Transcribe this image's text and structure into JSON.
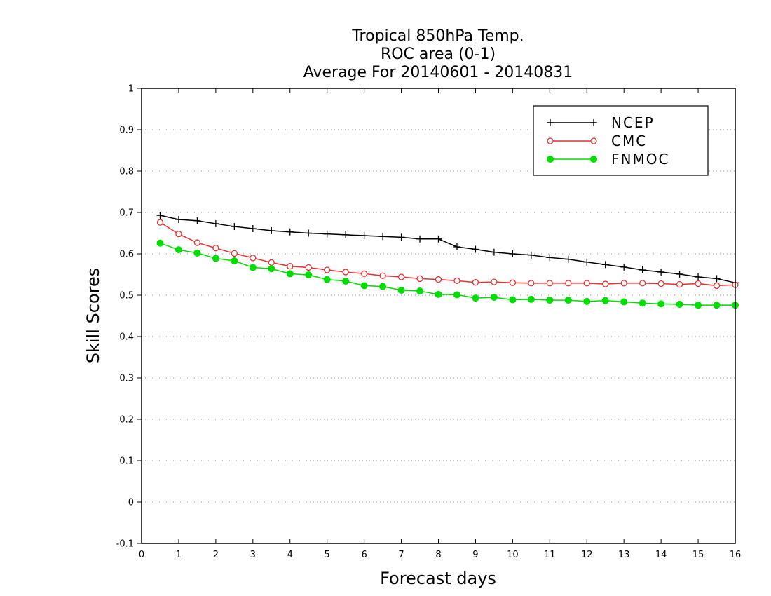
{
  "chart_data": {
    "type": "line",
    "title": [
      "Tropical 850hPa Temp.",
      "ROC area (0-1)",
      "Average For 20140601 - 20140831"
    ],
    "xlabel": "Forecast days",
    "ylabel": "Skill Scores",
    "xlim": [
      0,
      16
    ],
    "ylim": [
      -0.1,
      1
    ],
    "xticks": [
      0,
      1,
      2,
      3,
      4,
      5,
      6,
      7,
      8,
      9,
      10,
      11,
      12,
      13,
      14,
      15,
      16
    ],
    "yticks": [
      -0.1,
      0,
      0.1,
      0.2,
      0.3,
      0.4,
      0.5,
      0.6,
      0.7,
      0.8,
      0.9,
      1
    ],
    "ytick_labels": [
      "-0.1",
      "0",
      "0.1",
      "0.2",
      "0.3",
      "0.4",
      "0.5",
      "0.6",
      "0.7",
      "0.8",
      "0.9",
      "1"
    ],
    "grid": "horizontal dotted",
    "legend_position": "top-right",
    "x": [
      0.5,
      1.0,
      1.5,
      2.0,
      2.5,
      3.0,
      3.5,
      4.0,
      4.5,
      5.0,
      5.5,
      6.0,
      6.5,
      7.0,
      7.5,
      8.0,
      8.5,
      9.0,
      9.5,
      10.0,
      10.5,
      11.0,
      11.5,
      12.0,
      12.5,
      13.0,
      13.5,
      14.0,
      14.5,
      15.0,
      15.5,
      16.0
    ],
    "series": [
      {
        "name": "NCEP",
        "color": "#000000",
        "marker": "plus",
        "values": [
          0.693,
          0.683,
          0.68,
          0.673,
          0.666,
          0.661,
          0.656,
          0.653,
          0.65,
          0.648,
          0.646,
          0.644,
          0.642,
          0.64,
          0.636,
          0.636,
          0.617,
          0.611,
          0.604,
          0.6,
          0.597,
          0.591,
          0.587,
          0.58,
          0.574,
          0.568,
          0.561,
          0.556,
          0.551,
          0.544,
          0.54,
          0.53
        ]
      },
      {
        "name": "CMC",
        "color": "#e83030",
        "marker": "open-circle",
        "values": [
          0.676,
          0.648,
          0.627,
          0.614,
          0.601,
          0.59,
          0.579,
          0.57,
          0.567,
          0.561,
          0.556,
          0.552,
          0.547,
          0.544,
          0.54,
          0.538,
          0.535,
          0.531,
          0.532,
          0.53,
          0.529,
          0.529,
          0.529,
          0.529,
          0.527,
          0.529,
          0.529,
          0.528,
          0.526,
          0.528,
          0.523,
          0.525
        ]
      },
      {
        "name": "FNMOC",
        "color": "#00dd00",
        "marker": "filled-circle",
        "values": [
          0.626,
          0.61,
          0.602,
          0.589,
          0.583,
          0.567,
          0.564,
          0.552,
          0.549,
          0.538,
          0.534,
          0.523,
          0.521,
          0.512,
          0.51,
          0.502,
          0.501,
          0.493,
          0.495,
          0.489,
          0.49,
          0.488,
          0.488,
          0.485,
          0.487,
          0.484,
          0.481,
          0.479,
          0.478,
          0.476,
          0.476,
          0.476
        ]
      }
    ]
  }
}
